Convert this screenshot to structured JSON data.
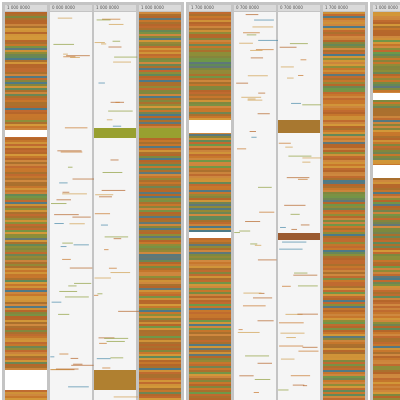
{
  "columns": [
    {
      "label": "1 000 0000"
    },
    {
      "label": "0 000 0000"
    },
    {
      "label": "1 000 0000"
    },
    {
      "label": "1 000 0000"
    },
    {
      "label": "1 700 0000"
    },
    {
      "label": "0 700 0000"
    },
    {
      "label": "0 700 0000"
    },
    {
      "label": "1 700 0000"
    },
    {
      "label": "1 000 0000"
    }
  ]
}
